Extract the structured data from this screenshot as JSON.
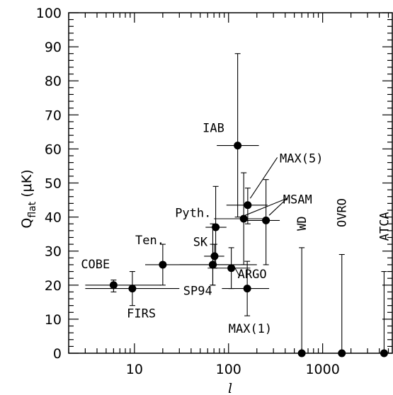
{
  "chart_data": {
    "type": "scatter",
    "title": "",
    "xlabel": "l",
    "ylabel_main": "Q",
    "ylabel_sub": "flat",
    "ylabel_unit": "(μK)",
    "xscale": "log",
    "xlim": [
      2,
      5500
    ],
    "ylim": [
      0,
      100
    ],
    "xticks": [
      10,
      100,
      1000
    ],
    "xtick_labels": [
      "10",
      "100",
      "1000"
    ],
    "yticks": [
      0,
      10,
      20,
      30,
      40,
      50,
      60,
      70,
      80,
      90,
      100
    ],
    "ytick_labels": [
      "0",
      "10",
      "20",
      "30",
      "40",
      "50",
      "60",
      "70",
      "80",
      "90",
      "100"
    ],
    "legend": "none",
    "grid": false,
    "points": [
      {
        "label": "COBE",
        "x": 6,
        "y": 20,
        "x_lo": 3,
        "x_hi": 19,
        "y_lo": 18,
        "y_hi": 21.5
      },
      {
        "label": "FIRS",
        "x": 9.5,
        "y": 19,
        "x_lo": 3,
        "x_hi": 30,
        "y_lo": 14,
        "y_hi": 24
      },
      {
        "label": "Ten.",
        "x": 20,
        "y": 26,
        "x_lo": 13,
        "x_hi": 30,
        "y_lo": 20,
        "y_hi": 32
      },
      {
        "label": "SK",
        "x": 68,
        "y": 26,
        "x_lo": 30,
        "x_hi": 200,
        "y_lo": 20,
        "y_hi": 32
      },
      {
        "label": "SK",
        "x": 71,
        "y": 28.5,
        "x_lo": 55,
        "x_hi": 90,
        "y_lo": 25,
        "y_hi": 32
      },
      {
        "label": "Pyth.",
        "x": 73,
        "y": 37,
        "x_lo": 57,
        "x_hi": 95,
        "y_lo": 26,
        "y_hi": 49
      },
      {
        "label": "SP94",
        "x": 68,
        "y": 26,
        "x_lo": 30,
        "x_hi": 100,
        "y_lo": 20,
        "y_hi": 38
      },
      {
        "label": "ARGO",
        "x": 107,
        "y": 25,
        "x_lo": 60,
        "x_hi": 170,
        "y_lo": 19,
        "y_hi": 31
      },
      {
        "label": "IAB",
        "x": 125,
        "y": 61,
        "x_lo": 75,
        "x_hi": 210,
        "y_lo": 40,
        "y_hi": 88
      },
      {
        "label": "MSAM",
        "x": 145,
        "y": 39.5,
        "x_lo": 70,
        "x_hi": 250,
        "y_lo": 26,
        "y_hi": 53
      },
      {
        "label": "MAX(5)",
        "x": 160,
        "y": 43.5,
        "x_lo": 95,
        "x_hi": 260,
        "y_lo": 38,
        "y_hi": 48.5
      },
      {
        "label": "MSAM",
        "x": 250,
        "y": 39,
        "x_lo": 145,
        "x_hi": 350,
        "y_lo": 26,
        "y_hi": 51
      },
      {
        "label": "MAX(1)",
        "x": 158,
        "y": 19,
        "x_lo": 85,
        "x_hi": 270,
        "y_lo": 11,
        "y_hi": 27
      },
      {
        "label": "WD",
        "x": 600,
        "y": 0,
        "x_lo": 600,
        "x_hi": 600,
        "y_lo": 0,
        "y_hi": 31
      },
      {
        "label": "OVRO",
        "x": 1600,
        "y": 0,
        "x_lo": 1600,
        "x_hi": 1600,
        "y_lo": 0,
        "y_hi": 29
      },
      {
        "label": "ATCA",
        "x": 4500,
        "y": 0,
        "x_lo": 4500,
        "x_hi": 4500,
        "y_lo": 0,
        "y_hi": 24
      }
    ],
    "annotations": [
      {
        "text": "COBE",
        "x": 2.7,
        "y": 25
      },
      {
        "text": "FIRS",
        "x": 8.3,
        "y": 10.5
      },
      {
        "text": "Ten.",
        "x": 10.2,
        "y": 32
      },
      {
        "text": "SK",
        "x": 42,
        "y": 31.5
      },
      {
        "text": "Pyth.",
        "x": 27,
        "y": 40
      },
      {
        "text": "SP94",
        "x": 33,
        "y": 17.2
      },
      {
        "text": "ARGO",
        "x": 125,
        "y": 22
      },
      {
        "text": "IAB",
        "x": 53,
        "y": 65
      },
      {
        "text": "MSAM",
        "x": 380,
        "y": 44
      },
      {
        "text": "MAX(5)",
        "x": 350,
        "y": 56
      },
      {
        "text": "MAX(1)",
        "x": 100,
        "y": 6
      },
      {
        "text": "WD",
        "x": 600,
        "y": 36,
        "rotate": true
      },
      {
        "text": "OVRO",
        "x": 1600,
        "y": 37,
        "rotate": true
      },
      {
        "text": "ATCA",
        "x": 4500,
        "y": 33,
        "rotate": true
      }
    ]
  }
}
